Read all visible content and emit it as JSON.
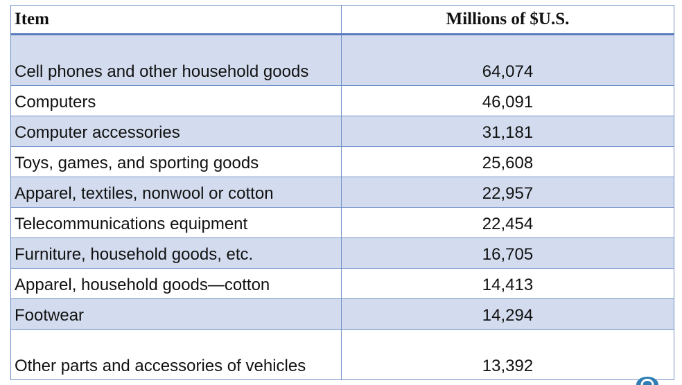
{
  "table": {
    "headers": {
      "item": "Item",
      "value": "Millions of $U.S."
    },
    "rows": [
      {
        "item": "Cell phones and other household goods",
        "value": "64,074"
      },
      {
        "item": "Computers",
        "value": "46,091"
      },
      {
        "item": "Computer accessories",
        "value": "31,181"
      },
      {
        "item": "Toys, games, and sporting goods",
        "value": "25,608"
      },
      {
        "item": "Apparel, textiles, nonwool or cotton",
        "value": "22,957"
      },
      {
        "item": "Telecommunications equipment",
        "value": "22,454"
      },
      {
        "item": "Furniture, household goods, etc.",
        "value": "16,705"
      },
      {
        "item": "Apparel, household goods—cotton",
        "value": "14,413"
      },
      {
        "item": "Footwear",
        "value": "14,294"
      },
      {
        "item": "Other parts and accessories of vehicles",
        "value": "13,392"
      }
    ]
  },
  "colors": {
    "shaded_row": "#d3dcee",
    "border": "#6f8fc8",
    "corner_icon": "#2f7fb5"
  },
  "icons": {
    "corner": "teal-partial-logo-icon"
  }
}
